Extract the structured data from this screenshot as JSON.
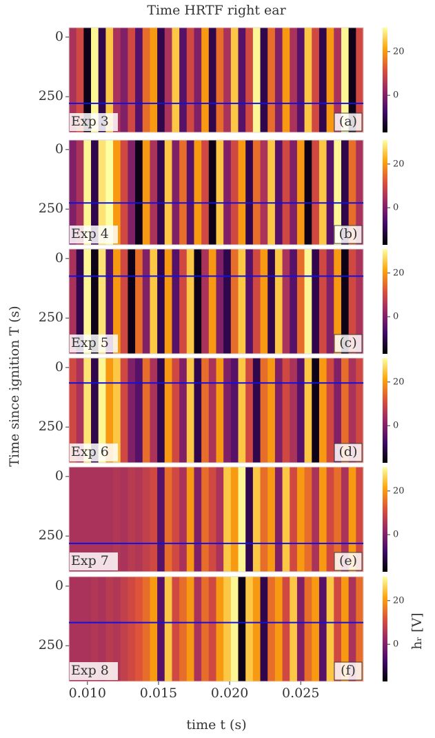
{
  "chart_data": {
    "type": "heatmap",
    "title": "Time HRTF right ear",
    "x_label": "time t (s)",
    "y_label": "Time since ignition T (s)",
    "colorbar_label": "hᵣ [V]",
    "xlim": [
      0.0087,
      0.0294
    ],
    "xticks": [
      {
        "value": 0.01,
        "label": "0.010"
      },
      {
        "value": 0.015,
        "label": "0.015"
      },
      {
        "value": 0.02,
        "label": "0.020"
      },
      {
        "value": 0.025,
        "label": "0.025"
      }
    ],
    "ylim": [
      -40,
      400
    ],
    "yticks": [
      0,
      250
    ],
    "clim": [
      -17,
      31
    ],
    "cticks": [
      0,
      20
    ],
    "colormap": [
      "#000004",
      "#420a68",
      "#932667",
      "#dd513a",
      "#fca50a",
      "#fcffa4"
    ],
    "line_color": "#1010e0",
    "panels": [
      {
        "name": "Exp 3",
        "tag": "(a)",
        "line_T": 278,
        "values": [
          5,
          10,
          -15,
          30,
          -10,
          25,
          5,
          0,
          10,
          -5,
          15,
          20,
          -10,
          5,
          25,
          -5,
          10,
          0,
          20,
          -10,
          15,
          5,
          25,
          -5,
          10,
          30,
          -10,
          15,
          0,
          20,
          5,
          -5,
          25,
          10,
          -10,
          20,
          5,
          30,
          -15,
          10
        ]
      },
      {
        "name": "Exp 4",
        "tag": "(b)",
        "line_T": 224,
        "values": [
          0,
          5,
          30,
          -10,
          28,
          31,
          20,
          10,
          0,
          -15,
          20,
          5,
          -10,
          25,
          0,
          15,
          -5,
          20,
          10,
          -15,
          25,
          0,
          10,
          20,
          -10,
          15,
          5,
          25,
          -5,
          10,
          0,
          20,
          -15,
          10,
          25,
          -5,
          30,
          -10,
          15,
          5
        ]
      },
      {
        "name": "Exp 5",
        "tag": "(c)",
        "line_T": 74,
        "values": [
          5,
          -10,
          30,
          -15,
          28,
          -5,
          20,
          10,
          -15,
          15,
          0,
          25,
          -10,
          20,
          -5,
          10,
          25,
          -15,
          5,
          20,
          0,
          -10,
          15,
          25,
          -5,
          10,
          20,
          -10,
          25,
          5,
          -5,
          15,
          30,
          -10,
          10,
          0,
          20,
          -15,
          10,
          5
        ]
      },
      {
        "name": "Exp 6",
        "tag": "(d)",
        "line_T": 65,
        "values": [
          10,
          5,
          28,
          -10,
          30,
          20,
          25,
          10,
          0,
          -5,
          15,
          5,
          -10,
          20,
          10,
          0,
          25,
          -10,
          15,
          5,
          20,
          0,
          -5,
          25,
          10,
          -10,
          15,
          20,
          0,
          10,
          5,
          -5,
          25,
          -15,
          20,
          10,
          0,
          15,
          5,
          10
        ]
      },
      {
        "name": "Exp 7",
        "tag": "(e)",
        "line_T": 281,
        "values": [
          5,
          5,
          5,
          5,
          5,
          5,
          6,
          5,
          7,
          6,
          8,
          10,
          -5,
          15,
          10,
          5,
          20,
          0,
          15,
          10,
          5,
          25,
          20,
          30,
          -10,
          25,
          15,
          20,
          0,
          25,
          10,
          20,
          15,
          5,
          20,
          10,
          15,
          5,
          20,
          10
        ]
      },
      {
        "name": "Exp 8",
        "tag": "(f)",
        "line_T": 153,
        "values": [
          5,
          5,
          5,
          6,
          5,
          7,
          6,
          8,
          10,
          12,
          15,
          20,
          -5,
          25,
          10,
          15,
          20,
          5,
          15,
          10,
          20,
          25,
          30,
          -15,
          25,
          20,
          -10,
          15,
          20,
          10,
          25,
          0,
          15,
          20,
          -5,
          25,
          10,
          20,
          5,
          15
        ]
      }
    ]
  }
}
